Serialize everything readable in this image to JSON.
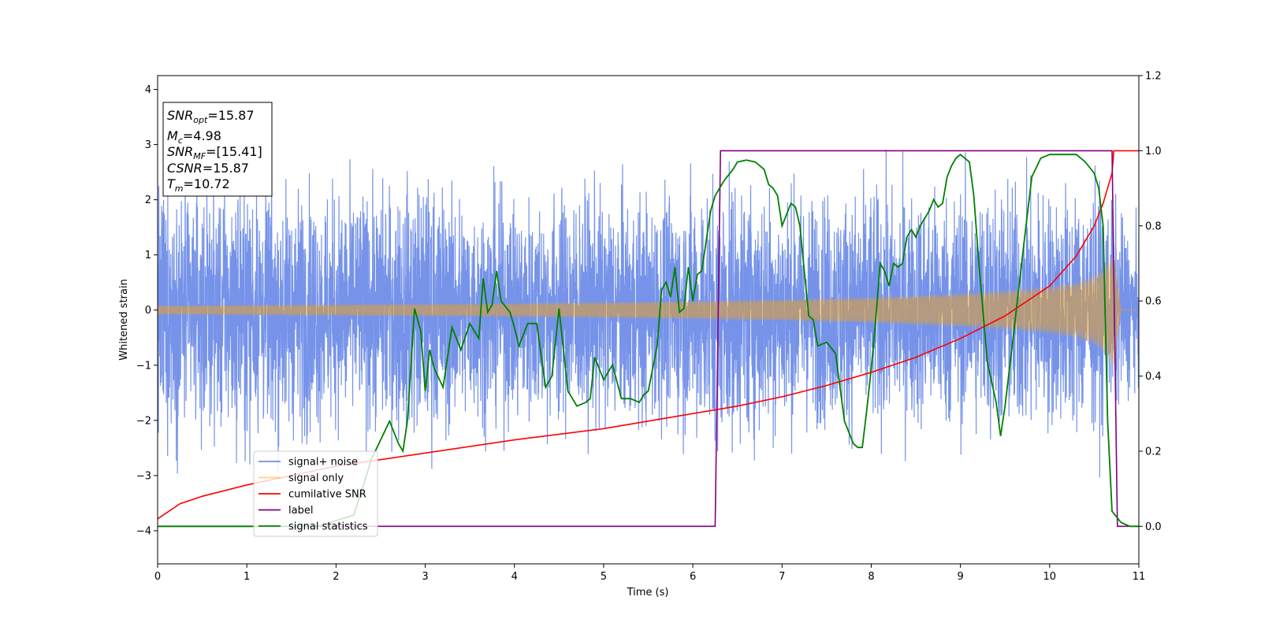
{
  "chart_data": {
    "type": "line",
    "xlabel": "Time (s)",
    "ylabel": "Whitened strain",
    "xlim": [
      0,
      11
    ],
    "ylim": [
      -4.6,
      4.25
    ],
    "y2lim": [
      -0.1,
      1.2
    ],
    "xticks": [
      "0",
      "1",
      "2",
      "3",
      "4",
      "5",
      "6",
      "7",
      "8",
      "9",
      "10",
      "11"
    ],
    "yticks": [
      "−4",
      "−3",
      "−2",
      "−1",
      "0",
      "1",
      "2",
      "3",
      "4"
    ],
    "y2ticks": [
      "0.0",
      "0.2",
      "0.4",
      "0.6",
      "0.8",
      "1.0",
      "1.2"
    ],
    "grid": false,
    "legend_placement": "lower-left",
    "legend": [
      {
        "label": "signal+ noise",
        "color": "#4169e1"
      },
      {
        "label": "signal only",
        "color": "#ffa500"
      },
      {
        "label": "cumilative SNR",
        "color": "#ff0000"
      },
      {
        "label": "label",
        "color": "#800080"
      },
      {
        "label": "signal statistics",
        "color": "#008000"
      }
    ],
    "annotation": {
      "snr_opt": {
        "name": "SNR",
        "sub": "opt",
        "value": "=15.87"
      },
      "mc": {
        "name": "M",
        "sub": "c",
        "value": "=4.98"
      },
      "snr_mf": {
        "name": "SNR",
        "sub": "MF",
        "value": "=[15.41]"
      },
      "csnr": {
        "name": "CSNR",
        "value": "=15.87"
      },
      "tm": {
        "name": "T",
        "sub": "m",
        "value": "=10.72"
      }
    },
    "series": [
      {
        "name": "signal+ noise",
        "axis": "left",
        "color": "#4169e1",
        "note_envelope_x": [
          0,
          0.5,
          1,
          1.5,
          2,
          2.5,
          3,
          3.5,
          4,
          4.5,
          5,
          5.5,
          6,
          6.5,
          7,
          7.5,
          8,
          8.5,
          9,
          9.5,
          10,
          10.5,
          11
        ],
        "envelope_high": [
          3.6,
          3.5,
          3.6,
          3.9,
          3.3,
          3.3,
          3.5,
          3.1,
          3.2,
          3.2,
          3.3,
          3.0,
          3.6,
          3.8,
          3.5,
          3.3,
          3.5,
          3.2,
          3.5,
          3.3,
          3.3,
          3.4,
          2.0
        ],
        "envelope_low": [
          -3.5,
          -3.1,
          -3.6,
          -3.0,
          -3.3,
          -3.4,
          -3.9,
          -3.2,
          -3.1,
          -3.4,
          -3.3,
          -3.3,
          -3.4,
          -3.7,
          -3.3,
          -3.2,
          -3.4,
          -3.4,
          -3.4,
          -3.9,
          -3.4,
          -3.6,
          -2.1
        ]
      },
      {
        "name": "signal only",
        "axis": "left",
        "color": "#ffa500",
        "amplitude_x": [
          0,
          1,
          2,
          3,
          4,
          5,
          6,
          7,
          8,
          9,
          9.5,
          10,
          10.3,
          10.5,
          10.6,
          10.65,
          10.7,
          10.72,
          10.8,
          11
        ],
        "amplitude": [
          0.08,
          0.09,
          0.1,
          0.11,
          0.12,
          0.14,
          0.16,
          0.19,
          0.23,
          0.3,
          0.35,
          0.42,
          0.5,
          0.62,
          0.75,
          0.85,
          1.0,
          1.05,
          0.0,
          0.0
        ]
      },
      {
        "name": "cumilative SNR",
        "axis": "right",
        "color": "#ff0000",
        "x": [
          0,
          0.25,
          0.5,
          1,
          1.5,
          2,
          3,
          4,
          5,
          6,
          6.5,
          7,
          7.5,
          8,
          8.5,
          9,
          9.5,
          10,
          10.3,
          10.5,
          10.6,
          10.7,
          10.72,
          10.8,
          11
        ],
        "y": [
          0.02,
          0.06,
          0.08,
          0.11,
          0.135,
          0.16,
          0.195,
          0.23,
          0.26,
          0.3,
          0.32,
          0.345,
          0.375,
          0.41,
          0.45,
          0.5,
          0.56,
          0.64,
          0.72,
          0.8,
          0.86,
          0.94,
          1.0,
          1.0,
          1.0
        ]
      },
      {
        "name": "label",
        "axis": "right",
        "color": "#800080",
        "x": [
          0,
          6.25,
          6.31,
          10.7,
          10.76,
          11
        ],
        "y": [
          0.0,
          0.0,
          1.0,
          1.0,
          0.0,
          0.0
        ]
      },
      {
        "name": "signal statistics",
        "axis": "right",
        "color": "#008000",
        "x": [
          0,
          1.8,
          2.0,
          2.2,
          2.4,
          2.6,
          2.7,
          2.75,
          2.8,
          2.88,
          2.95,
          3.0,
          3.05,
          3.1,
          3.2,
          3.3,
          3.4,
          3.5,
          3.6,
          3.65,
          3.7,
          3.75,
          3.8,
          3.85,
          3.95,
          4.0,
          4.05,
          4.15,
          4.25,
          4.35,
          4.42,
          4.5,
          4.6,
          4.7,
          4.8,
          4.85,
          4.9,
          5.0,
          5.1,
          5.2,
          5.3,
          5.4,
          5.45,
          5.5,
          5.6,
          5.65,
          5.7,
          5.75,
          5.8,
          5.85,
          5.9,
          5.95,
          6.0,
          6.05,
          6.1,
          6.2,
          6.25,
          6.3,
          6.35,
          6.45,
          6.5,
          6.6,
          6.7,
          6.8,
          6.85,
          6.9,
          6.95,
          7.0,
          7.1,
          7.15,
          7.2,
          7.3,
          7.35,
          7.4,
          7.5,
          7.6,
          7.7,
          7.8,
          7.85,
          7.9,
          7.95,
          8.0,
          8.05,
          8.1,
          8.15,
          8.2,
          8.25,
          8.3,
          8.35,
          8.4,
          8.45,
          8.5,
          8.55,
          8.6,
          8.65,
          8.7,
          8.75,
          8.8,
          8.85,
          8.9,
          8.95,
          9.0,
          9.05,
          9.1,
          9.15,
          9.2,
          9.3,
          9.4,
          9.45,
          9.5,
          9.6,
          9.7,
          9.8,
          9.9,
          10.0,
          10.1,
          10.2,
          10.3,
          10.4,
          10.5,
          10.55,
          10.6,
          10.65,
          10.7,
          10.8,
          10.9,
          11.0
        ],
        "y": [
          0.0,
          0.0,
          0.015,
          0.03,
          0.18,
          0.28,
          0.22,
          0.2,
          0.28,
          0.58,
          0.52,
          0.36,
          0.47,
          0.42,
          0.37,
          0.53,
          0.47,
          0.54,
          0.5,
          0.66,
          0.57,
          0.59,
          0.68,
          0.6,
          0.57,
          0.53,
          0.48,
          0.54,
          0.54,
          0.37,
          0.4,
          0.58,
          0.36,
          0.32,
          0.33,
          0.34,
          0.45,
          0.39,
          0.43,
          0.34,
          0.34,
          0.33,
          0.35,
          0.36,
          0.48,
          0.63,
          0.65,
          0.61,
          0.69,
          0.57,
          0.58,
          0.69,
          0.6,
          0.67,
          0.68,
          0.84,
          0.88,
          0.9,
          0.92,
          0.95,
          0.97,
          0.975,
          0.97,
          0.95,
          0.91,
          0.9,
          0.88,
          0.8,
          0.86,
          0.85,
          0.8,
          0.56,
          0.55,
          0.48,
          0.49,
          0.46,
          0.28,
          0.22,
          0.21,
          0.21,
          0.31,
          0.42,
          0.55,
          0.7,
          0.68,
          0.64,
          0.7,
          0.69,
          0.7,
          0.77,
          0.79,
          0.77,
          0.8,
          0.82,
          0.84,
          0.87,
          0.85,
          0.86,
          0.93,
          0.96,
          0.98,
          0.99,
          0.98,
          0.97,
          0.88,
          0.72,
          0.44,
          0.33,
          0.24,
          0.32,
          0.52,
          0.73,
          0.93,
          0.98,
          0.99,
          0.99,
          0.99,
          0.99,
          0.97,
          0.94,
          0.9,
          0.8,
          0.28,
          0.04,
          0.01,
          0.0,
          0.0
        ]
      }
    ]
  }
}
